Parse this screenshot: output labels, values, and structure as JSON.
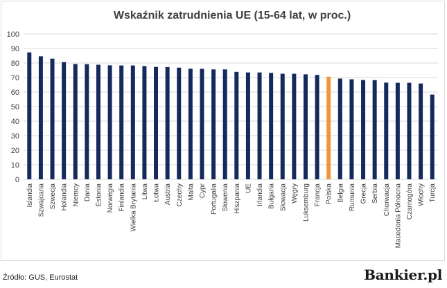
{
  "footer": {
    "source": "Źródło: GUS, Eurostat",
    "brand": "Bankier.pl"
  },
  "colors": {
    "bar": "#152A5C",
    "highlight": "#F0953D",
    "grid": "#d9d9d9",
    "text": "#404040"
  },
  "chart_data": {
    "type": "bar",
    "title": "Wskaźnik zatrudnienia UE (15-64 lat, w proc.)",
    "xlabel": "",
    "ylabel": "",
    "ylim": [
      0,
      100
    ],
    "yticks": [
      0,
      10,
      20,
      30,
      40,
      50,
      60,
      70,
      80,
      90,
      100
    ],
    "grid": true,
    "legend": "none",
    "highlight_category": "Polska",
    "categories": [
      "Islandia",
      "Szwajcaria",
      "Szwecja",
      "Holandia",
      "Niemcy",
      "Dania",
      "Estonia",
      "Norwegia",
      "Finlandia",
      "Wielka Brytania",
      "Litwa",
      "Łotwa",
      "Austria",
      "Czechy",
      "Malta",
      "Cypr",
      "Portugalia",
      "Słowenia",
      "Hiszpania",
      "UE",
      "Irlandia",
      "Bułgaria",
      "Słowacja",
      "Węgry",
      "Luksemburg",
      "Francja",
      "Polska",
      "Belgia",
      "Rumunia",
      "Grecja",
      "Serbia",
      "Chorwacja",
      "Macedonia Północna",
      "Czarnogóra",
      "Włochy",
      "Turcja"
    ],
    "values": [
      87.3,
      84.6,
      83.0,
      80.6,
      79.3,
      79.2,
      78.8,
      78.4,
      78.3,
      78.3,
      77.9,
      77.3,
      77.2,
      76.8,
      76.1,
      76.0,
      75.6,
      75.6,
      73.9,
      73.5,
      73.5,
      73.2,
      72.6,
      72.6,
      72.2,
      71.8,
      70.6,
      69.3,
      68.8,
      68.3,
      68.2,
      66.5,
      66.4,
      66.4,
      65.9,
      58.3
    ]
  }
}
